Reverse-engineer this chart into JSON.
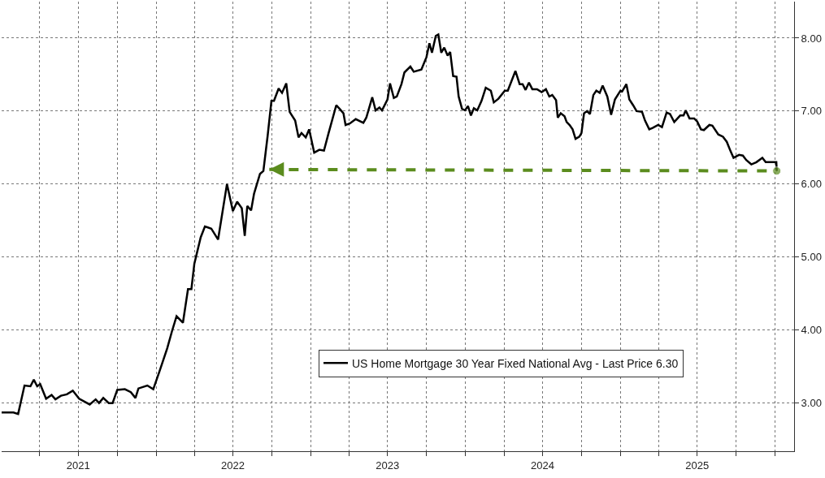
{
  "chart_data": {
    "type": "line",
    "xlim": [
      "2021-01-01",
      "2026-02-15"
    ],
    "ylim": [
      2.34,
      8.5
    ],
    "yticks": [
      {
        "value": 3,
        "label": "3.00"
      },
      {
        "value": 4,
        "label": "4.00"
      },
      {
        "value": 5,
        "label": "5.00"
      },
      {
        "value": 6,
        "label": "6.00"
      },
      {
        "value": 7,
        "label": "7.00"
      },
      {
        "value": 8,
        "label": "8.00"
      }
    ],
    "xticks": [
      {
        "value": "2021-04-01",
        "label": null
      },
      {
        "value": "2021-07-01",
        "label": "2021"
      },
      {
        "value": "2021-10-01",
        "label": null
      },
      {
        "value": "2022-01-01",
        "label": null
      },
      {
        "value": "2022-04-01",
        "label": null
      },
      {
        "value": "2022-07-01",
        "label": "2022"
      },
      {
        "value": "2022-10-01",
        "label": null
      },
      {
        "value": "2023-01-01",
        "label": null
      },
      {
        "value": "2023-04-01",
        "label": null
      },
      {
        "value": "2023-07-01",
        "label": "2023"
      },
      {
        "value": "2023-10-01",
        "label": null
      },
      {
        "value": "2024-01-01",
        "label": null
      },
      {
        "value": "2024-04-01",
        "label": null
      },
      {
        "value": "2024-07-01",
        "label": "2024"
      },
      {
        "value": "2024-10-01",
        "label": null
      },
      {
        "value": "2025-01-01",
        "label": null
      },
      {
        "value": "2025-04-01",
        "label": null
      },
      {
        "value": "2025-07-01",
        "label": "2025"
      },
      {
        "value": "2025-10-01",
        "label": null
      },
      {
        "value": "2026-01-01",
        "label": null
      }
    ],
    "grid": true,
    "legend": "bottom",
    "line_style": "solid",
    "marker": "none",
    "series": [
      {
        "name": "US Home Mortgage 30 Year Fixed National Avg - Last Price 6.30",
        "color": "#000000",
        "x": [
          "2021-01-01",
          "2021-01-29",
          "2021-02-09",
          "2021-02-24",
          "2021-03-10",
          "2021-03-18",
          "2021-03-26",
          "2021-04-02",
          "2021-04-16",
          "2021-04-29",
          "2021-05-08",
          "2021-05-21",
          "2021-06-04",
          "2021-06-18",
          "2021-07-03",
          "2021-07-28",
          "2021-08-11",
          "2021-08-19",
          "2021-08-29",
          "2021-09-11",
          "2021-09-20",
          "2021-10-01",
          "2021-10-19",
          "2021-11-02",
          "2021-11-13",
          "2021-11-20",
          "2021-12-11",
          "2021-12-25",
          "2022-01-09",
          "2022-01-27",
          "2022-02-07",
          "2022-02-18",
          "2022-03-05",
          "2022-03-17",
          "2022-03-25",
          "2022-04-01",
          "2022-04-16",
          "2022-04-26",
          "2022-05-11",
          "2022-05-27",
          "2022-06-17",
          "2022-07-01",
          "2022-07-11",
          "2022-07-22",
          "2022-07-29",
          "2022-08-04",
          "2022-08-13",
          "2022-08-20",
          "2022-09-03",
          "2022-09-11",
          "2022-09-21",
          "2022-09-30",
          "2022-10-06",
          "2022-10-17",
          "2022-10-25",
          "2022-11-04",
          "2022-11-12",
          "2022-11-25",
          "2022-12-03",
          "2022-12-10",
          "2022-12-20",
          "2022-12-28",
          "2023-01-09",
          "2023-01-21",
          "2023-02-01",
          "2023-02-12",
          "2023-03-02",
          "2023-03-10",
          "2023-03-19",
          "2023-03-24",
          "2023-04-03",
          "2023-04-17",
          "2023-05-05",
          "2023-05-12",
          "2023-05-26",
          "2023-06-03",
          "2023-06-12",
          "2023-06-18",
          "2023-07-01",
          "2023-07-07",
          "2023-07-16",
          "2023-07-23",
          "2023-08-03",
          "2023-08-10",
          "2023-08-24",
          "2023-09-01",
          "2023-09-19",
          "2023-10-01",
          "2023-10-08",
          "2023-10-14",
          "2023-10-23",
          "2023-10-29",
          "2023-11-05",
          "2023-11-12",
          "2023-11-20",
          "2023-11-26",
          "2023-12-03",
          "2023-12-11",
          "2023-12-16",
          "2023-12-24",
          "2023-12-31",
          "2024-01-07",
          "2024-01-14",
          "2024-01-21",
          "2024-01-29",
          "2024-02-08",
          "2024-02-18",
          "2024-03-01",
          "2024-03-08",
          "2024-03-19",
          "2024-04-03",
          "2024-04-10",
          "2024-04-28",
          "2024-05-08",
          "2024-05-15",
          "2024-05-22",
          "2024-05-30",
          "2024-06-07",
          "2024-06-18",
          "2024-06-29",
          "2024-07-09",
          "2024-07-17",
          "2024-07-24",
          "2024-08-02",
          "2024-08-06",
          "2024-08-13",
          "2024-08-22",
          "2024-08-27",
          "2024-09-03",
          "2024-09-10",
          "2024-09-17",
          "2024-09-26",
          "2024-10-01",
          "2024-10-07",
          "2024-10-14",
          "2024-10-21",
          "2024-10-29",
          "2024-11-05",
          "2024-11-13",
          "2024-11-20",
          "2024-12-01",
          "2024-12-10",
          "2024-12-19",
          "2025-01-01",
          "2025-01-05",
          "2025-01-15",
          "2025-01-22",
          "2025-01-31",
          "2025-02-08",
          "2025-02-21",
          "2025-02-28",
          "2025-03-10",
          "2025-03-18",
          "2025-03-31",
          "2025-04-09",
          "2025-04-20",
          "2025-04-28",
          "2025-05-08",
          "2025-05-22",
          "2025-05-30",
          "2025-06-04",
          "2025-06-13",
          "2025-06-24",
          "2025-07-01",
          "2025-07-10",
          "2025-07-17",
          "2025-07-30",
          "2025-08-06",
          "2025-08-20",
          "2025-08-31",
          "2025-09-09",
          "2025-09-18",
          "2025-09-25",
          "2025-10-08",
          "2025-10-17",
          "2025-10-25",
          "2025-11-06",
          "2025-11-18",
          "2025-12-02",
          "2025-12-10",
          "2025-12-25",
          "2026-01-04",
          "2026-01-05"
        ],
        "values": [
          2.87,
          2.87,
          2.85,
          3.24,
          3.23,
          3.32,
          3.23,
          3.26,
          3.06,
          3.11,
          3.05,
          3.1,
          3.12,
          3.17,
          3.06,
          2.98,
          3.05,
          3.0,
          3.07,
          3.0,
          3.0,
          3.18,
          3.19,
          3.15,
          3.07,
          3.2,
          3.24,
          3.19,
          3.44,
          3.75,
          3.98,
          4.19,
          4.1,
          4.56,
          4.56,
          4.91,
          5.27,
          5.42,
          5.39,
          5.24,
          6.0,
          5.63,
          5.76,
          5.67,
          5.29,
          5.7,
          5.64,
          5.87,
          6.14,
          6.18,
          6.66,
          7.14,
          7.14,
          7.31,
          7.25,
          7.38,
          6.99,
          6.87,
          6.64,
          6.7,
          6.64,
          6.75,
          6.43,
          6.47,
          6.46,
          6.7,
          7.08,
          7.03,
          6.97,
          6.81,
          6.83,
          6.89,
          6.84,
          6.91,
          7.19,
          7.01,
          7.05,
          7.01,
          7.16,
          7.38,
          7.18,
          7.2,
          7.37,
          7.53,
          7.61,
          7.54,
          7.57,
          7.74,
          7.93,
          7.8,
          8.03,
          8.05,
          7.8,
          7.87,
          7.76,
          7.81,
          7.48,
          7.47,
          7.2,
          7.03,
          7.01,
          7.07,
          6.94,
          7.04,
          7.01,
          7.14,
          7.32,
          7.28,
          7.12,
          7.17,
          7.28,
          7.28,
          7.55,
          7.37,
          7.37,
          7.29,
          7.39,
          7.3,
          7.3,
          7.26,
          7.3,
          7.2,
          7.22,
          7.15,
          6.91,
          6.97,
          6.93,
          6.85,
          6.81,
          6.75,
          6.62,
          6.65,
          6.7,
          6.97,
          7.0,
          6.96,
          7.22,
          7.28,
          7.25,
          7.35,
          7.2,
          6.95,
          7.16,
          7.28,
          7.27,
          7.37,
          7.16,
          7.08,
          7.0,
          6.99,
          6.87,
          6.75,
          6.77,
          6.81,
          6.78,
          6.98,
          6.96,
          6.85,
          6.94,
          6.94,
          7.01,
          6.9,
          6.9,
          6.86,
          6.75,
          6.74,
          6.81,
          6.8,
          6.68,
          6.65,
          6.58,
          6.45,
          6.36,
          6.4,
          6.39,
          6.33,
          6.27,
          6.3,
          6.36,
          6.3,
          6.3,
          6.3,
          6.18
        ]
      },
      {
        "color": "#5b8c1e",
        "line_style": "dashed",
        "marker": "circle",
        "x": [
          "2022-09-25",
          "2026-01-05"
        ],
        "values": [
          6.2,
          6.18
        ]
      }
    ]
  }
}
